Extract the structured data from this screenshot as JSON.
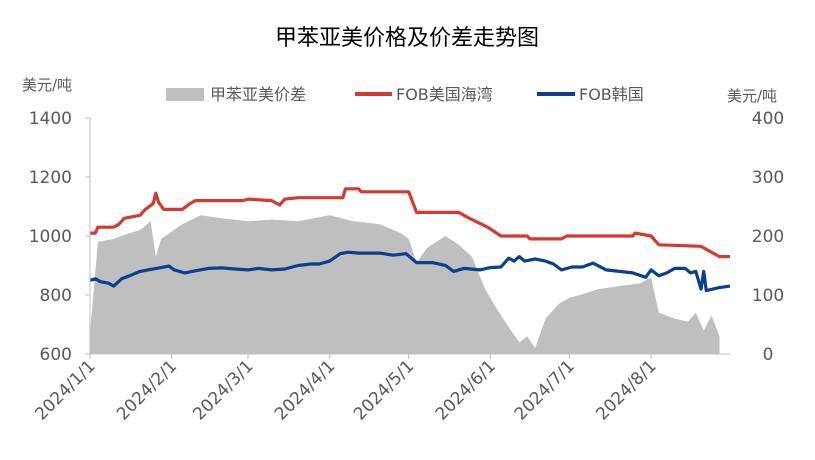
{
  "chart_data": {
    "type": "area+line",
    "title": "甲苯亚美价格及价差走势图",
    "y_left_label": "美元/吨",
    "y_right_label": "美元/吨",
    "y_left_ticks": [
      "1400",
      "1200",
      "1000",
      "800",
      "600"
    ],
    "y_right_ticks": [
      "400",
      "300",
      "200",
      "100",
      "0"
    ],
    "ylim_left": [
      600,
      1400
    ],
    "ylim_right": [
      0,
      400
    ],
    "x_ticks": [
      "2024/1/1",
      "2024/2/1",
      "2024/3/1",
      "2024/4/1",
      "2024/5/1",
      "2024/6/1",
      "2024/7/1",
      "2024/8/1"
    ],
    "grid": false,
    "legend_position": "top",
    "series": [
      {
        "name": "甲苯亚美价差",
        "type": "area",
        "axis": "right",
        "color": "#BFBFBF",
        "points": [
          [
            "2024-01-01",
            35
          ],
          [
            "2024-01-04",
            190
          ],
          [
            "2024-01-10",
            195
          ],
          [
            "2024-01-16",
            205
          ],
          [
            "2024-01-20",
            210
          ],
          [
            "2024-01-24",
            225
          ],
          [
            "2024-01-26",
            165
          ],
          [
            "2024-01-28",
            195
          ],
          [
            "2024-02-05",
            220
          ],
          [
            "2024-02-12",
            235
          ],
          [
            "2024-02-20",
            230
          ],
          [
            "2024-03-01",
            225
          ],
          [
            "2024-03-10",
            228
          ],
          [
            "2024-03-20",
            225
          ],
          [
            "2024-04-01",
            235
          ],
          [
            "2024-04-10",
            225
          ],
          [
            "2024-04-20",
            220
          ],
          [
            "2024-04-28",
            205
          ],
          [
            "2024-05-01",
            195
          ],
          [
            "2024-05-04",
            155
          ],
          [
            "2024-05-08",
            180
          ],
          [
            "2024-05-15",
            200
          ],
          [
            "2024-05-20",
            185
          ],
          [
            "2024-05-25",
            165
          ],
          [
            "2024-05-30",
            110
          ],
          [
            "2024-06-03",
            80
          ],
          [
            "2024-06-08",
            45
          ],
          [
            "2024-06-12",
            20
          ],
          [
            "2024-06-15",
            30
          ],
          [
            "2024-06-18",
            10
          ],
          [
            "2024-06-22",
            60
          ],
          [
            "2024-06-27",
            85
          ],
          [
            "2024-07-01",
            95
          ],
          [
            "2024-07-05",
            100
          ],
          [
            "2024-07-12",
            110
          ],
          [
            "2024-07-20",
            115
          ],
          [
            "2024-07-28",
            120
          ],
          [
            "2024-08-01",
            130
          ],
          [
            "2024-08-04",
            70
          ],
          [
            "2024-08-10",
            60
          ],
          [
            "2024-08-15",
            55
          ],
          [
            "2024-08-18",
            70
          ],
          [
            "2024-08-21",
            40
          ],
          [
            "2024-08-24",
            65
          ],
          [
            "2024-08-27",
            30
          ]
        ]
      },
      {
        "name": "FOB美国海湾",
        "type": "line",
        "axis": "left",
        "color": "#D43A2F",
        "points": [
          [
            "2024-01-01",
            1010
          ],
          [
            "2024-01-03",
            1010
          ],
          [
            "2024-01-04",
            1030
          ],
          [
            "2024-01-10",
            1030
          ],
          [
            "2024-01-12",
            1040
          ],
          [
            "2024-01-14",
            1060
          ],
          [
            "2024-01-20",
            1070
          ],
          [
            "2024-01-22",
            1090
          ],
          [
            "2024-01-25",
            1110
          ],
          [
            "2024-01-26",
            1145
          ],
          [
            "2024-01-27",
            1115
          ],
          [
            "2024-01-29",
            1090
          ],
          [
            "2024-02-05",
            1090
          ],
          [
            "2024-02-08",
            1110
          ],
          [
            "2024-02-10",
            1120
          ],
          [
            "2024-02-28",
            1120
          ],
          [
            "2024-03-01",
            1125
          ],
          [
            "2024-03-10",
            1120
          ],
          [
            "2024-03-13",
            1105
          ],
          [
            "2024-03-15",
            1125
          ],
          [
            "2024-03-20",
            1130
          ],
          [
            "2024-04-06",
            1130
          ],
          [
            "2024-04-07",
            1160
          ],
          [
            "2024-04-12",
            1160
          ],
          [
            "2024-04-13",
            1150
          ],
          [
            "2024-05-01",
            1150
          ],
          [
            "2024-05-04",
            1080
          ],
          [
            "2024-05-20",
            1080
          ],
          [
            "2024-05-24",
            1060
          ],
          [
            "2024-05-31",
            1030
          ],
          [
            "2024-06-05",
            1000
          ],
          [
            "2024-06-15",
            1000
          ],
          [
            "2024-06-16",
            990
          ],
          [
            "2024-06-28",
            990
          ],
          [
            "2024-06-30",
            1000
          ],
          [
            "2024-07-25",
            1000
          ],
          [
            "2024-07-26",
            1010
          ],
          [
            "2024-08-01",
            1000
          ],
          [
            "2024-08-04",
            970
          ],
          [
            "2024-08-20",
            965
          ],
          [
            "2024-08-23",
            950
          ],
          [
            "2024-08-27",
            930
          ],
          [
            "2024-08-31",
            930
          ]
        ]
      },
      {
        "name": "FOB韩国",
        "type": "line",
        "axis": "left",
        "color": "#0B3F8F",
        "points": [
          [
            "2024-01-01",
            850
          ],
          [
            "2024-01-03",
            855
          ],
          [
            "2024-01-05",
            845
          ],
          [
            "2024-01-08",
            840
          ],
          [
            "2024-01-10",
            830
          ],
          [
            "2024-01-13",
            855
          ],
          [
            "2024-01-16",
            865
          ],
          [
            "2024-01-20",
            880
          ],
          [
            "2024-01-23",
            885
          ],
          [
            "2024-01-28",
            893
          ],
          [
            "2024-01-31",
            898
          ],
          [
            "2024-02-02",
            885
          ],
          [
            "2024-02-06",
            875
          ],
          [
            "2024-02-10",
            882
          ],
          [
            "2024-02-15",
            890
          ],
          [
            "2024-02-20",
            892
          ],
          [
            "2024-02-25",
            888
          ],
          [
            "2024-03-01",
            885
          ],
          [
            "2024-03-05",
            890
          ],
          [
            "2024-03-10",
            885
          ],
          [
            "2024-03-15",
            888
          ],
          [
            "2024-03-20",
            900
          ],
          [
            "2024-03-25",
            905
          ],
          [
            "2024-03-28",
            905
          ],
          [
            "2024-04-01",
            915
          ],
          [
            "2024-04-05",
            940
          ],
          [
            "2024-04-08",
            945
          ],
          [
            "2024-04-12",
            942
          ],
          [
            "2024-04-20",
            942
          ],
          [
            "2024-04-25",
            935
          ],
          [
            "2024-04-30",
            940
          ],
          [
            "2024-05-04",
            910
          ],
          [
            "2024-05-10",
            910
          ],
          [
            "2024-05-15",
            900
          ],
          [
            "2024-05-18",
            880
          ],
          [
            "2024-05-22",
            890
          ],
          [
            "2024-05-28",
            885
          ],
          [
            "2024-06-01",
            893
          ],
          [
            "2024-06-05",
            895
          ],
          [
            "2024-06-08",
            925
          ],
          [
            "2024-06-10",
            915
          ],
          [
            "2024-06-12",
            930
          ],
          [
            "2024-06-14",
            915
          ],
          [
            "2024-06-18",
            922
          ],
          [
            "2024-06-22",
            915
          ],
          [
            "2024-06-25",
            905
          ],
          [
            "2024-06-28",
            885
          ],
          [
            "2024-07-02",
            895
          ],
          [
            "2024-07-06",
            895
          ],
          [
            "2024-07-10",
            908
          ],
          [
            "2024-07-15",
            885
          ],
          [
            "2024-07-20",
            880
          ],
          [
            "2024-07-25",
            875
          ],
          [
            "2024-07-30",
            860
          ],
          [
            "2024-08-01",
            885
          ],
          [
            "2024-08-04",
            865
          ],
          [
            "2024-08-07",
            875
          ],
          [
            "2024-08-10",
            890
          ],
          [
            "2024-08-14",
            890
          ],
          [
            "2024-08-16",
            875
          ],
          [
            "2024-08-18",
            880
          ],
          [
            "2024-08-20",
            820
          ],
          [
            "2024-08-21",
            880
          ],
          [
            "2024-08-22",
            815
          ],
          [
            "2024-08-27",
            825
          ],
          [
            "2024-08-31",
            830
          ]
        ]
      }
    ]
  }
}
